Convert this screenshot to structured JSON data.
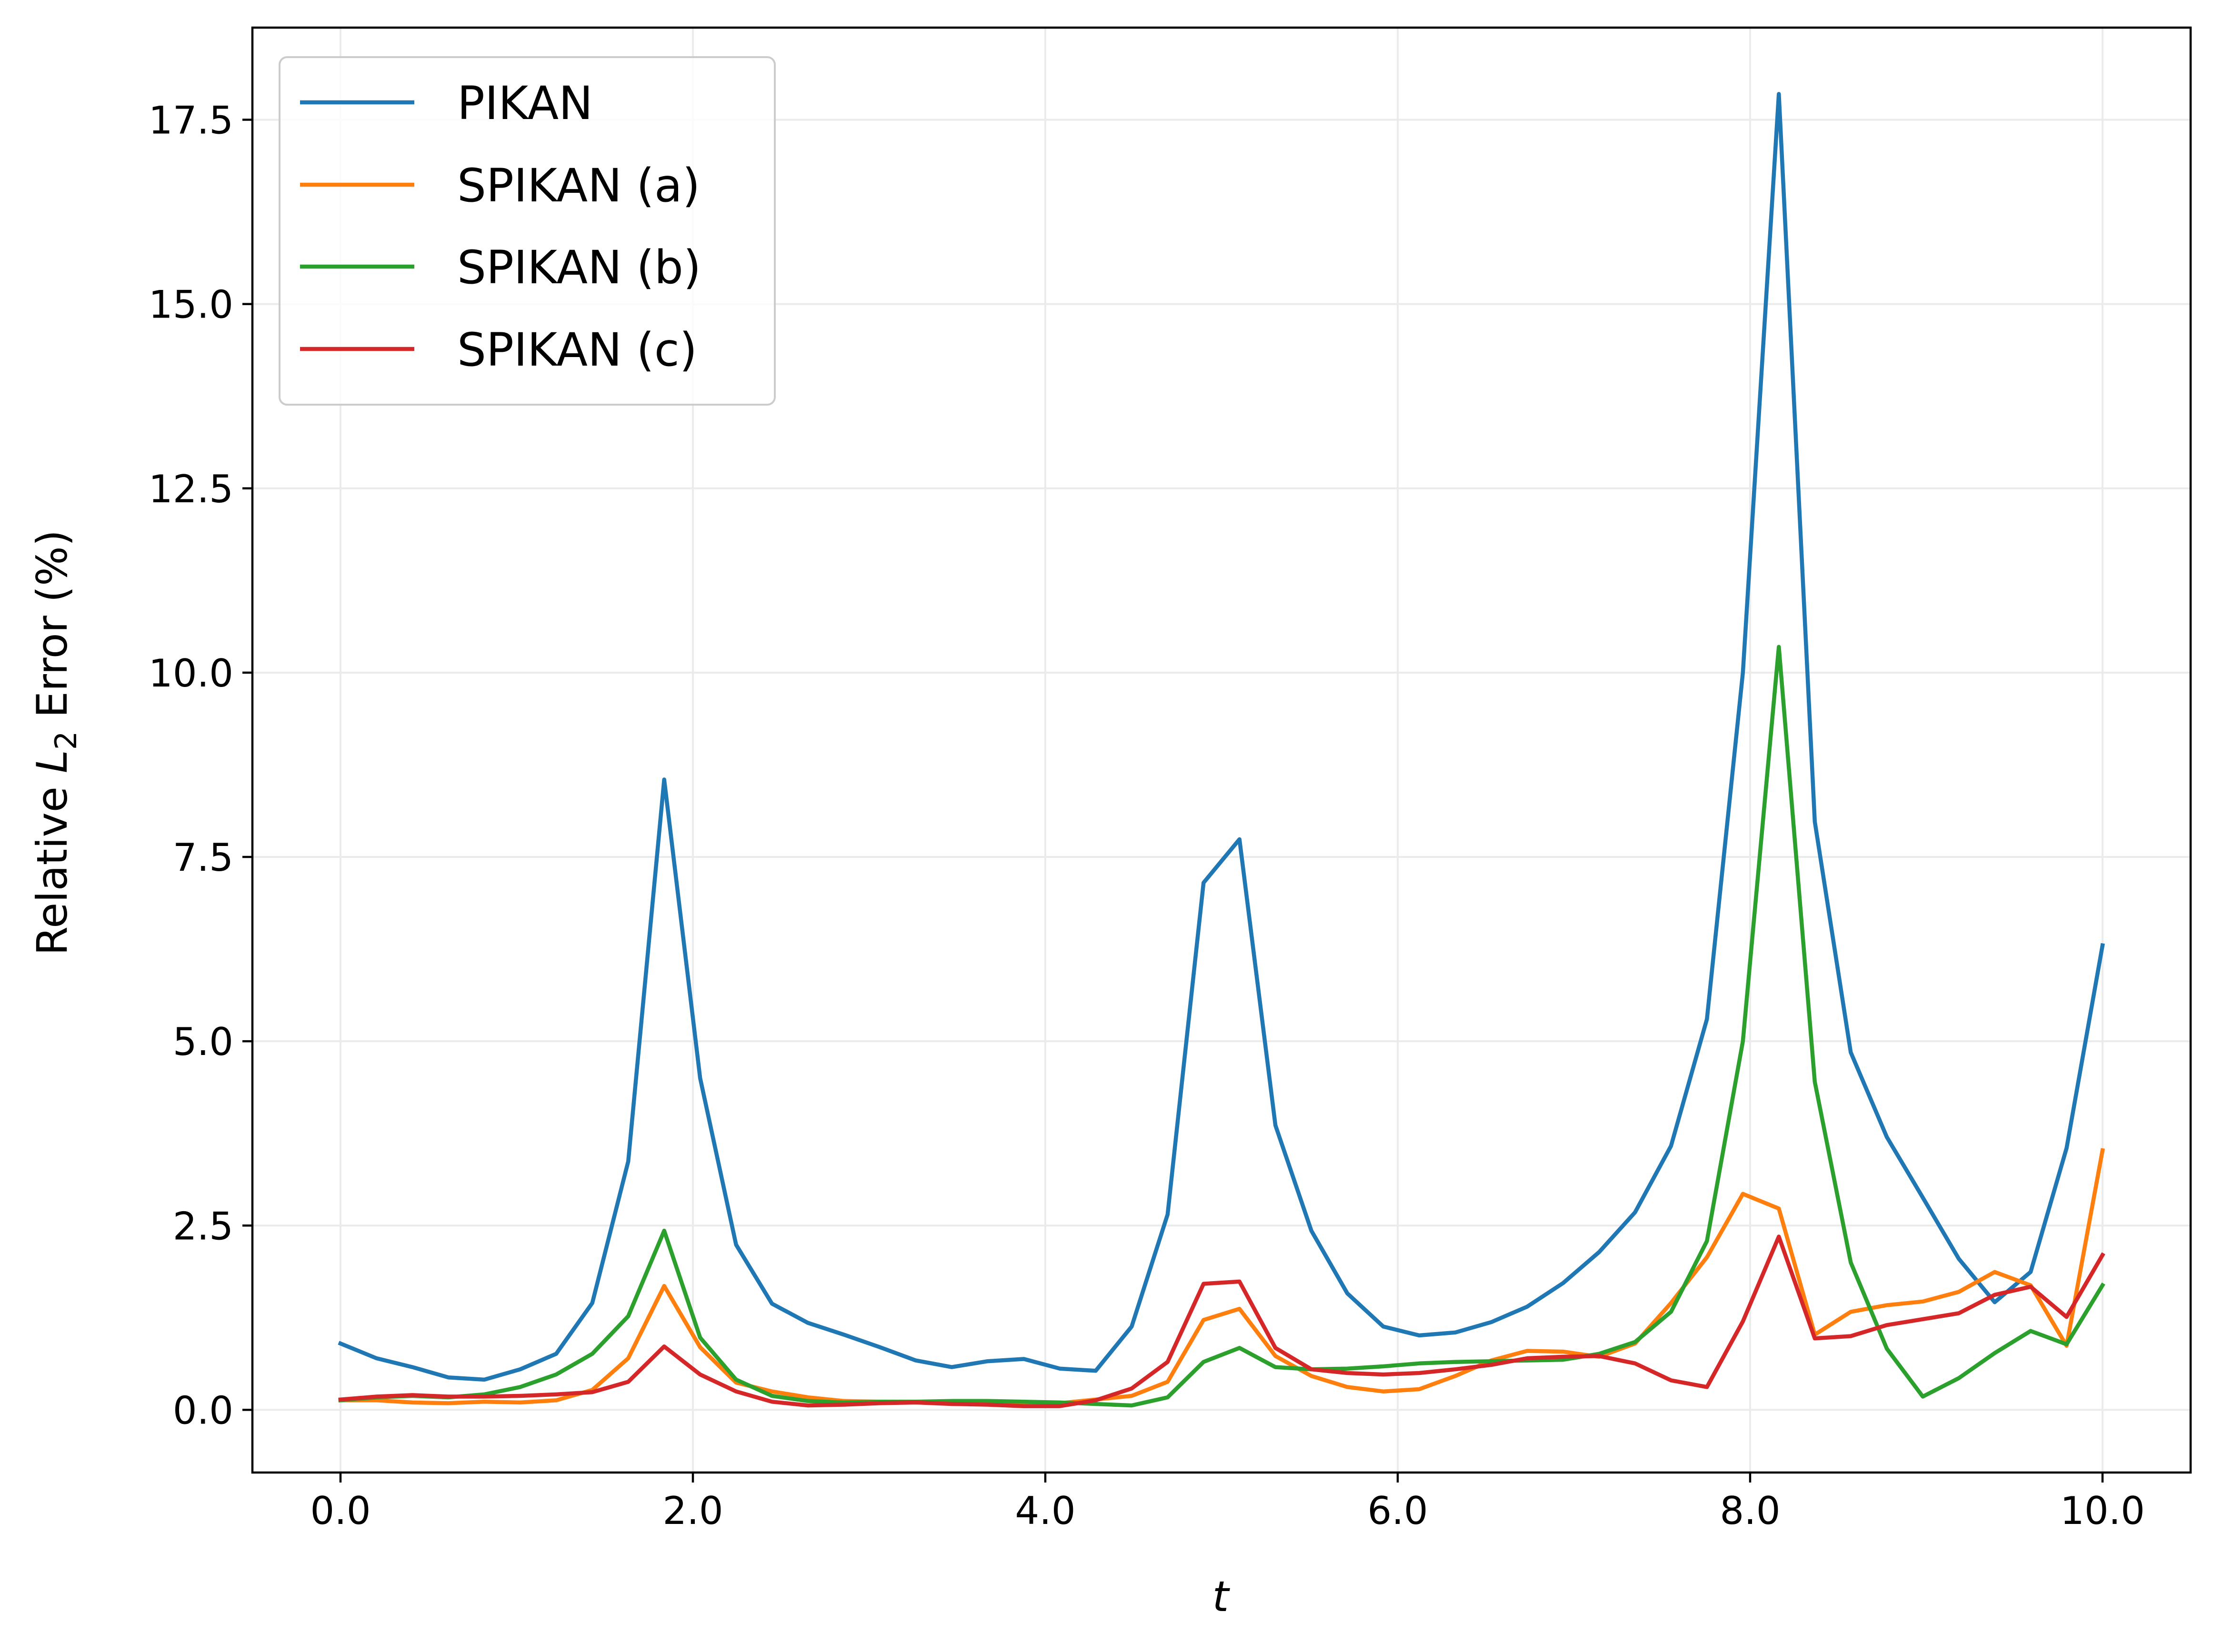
{
  "chart_data": {
    "type": "line",
    "title": "",
    "xlabel": "t",
    "ylabel_prefix": "Relative ",
    "ylabel_math": "L",
    "ylabel_sub": "2",
    "ylabel_suffix": " Error (%)",
    "xlim": [
      -0.5,
      10.5
    ],
    "ylim": [
      -0.85,
      18.75
    ],
    "xticks": [
      0,
      2,
      4,
      6,
      8,
      10
    ],
    "xtick_labels": [
      "0.0",
      "2.0",
      "4.0",
      "6.0",
      "8.0",
      "10.0"
    ],
    "yticks": [
      0,
      2.5,
      5,
      7.5,
      10,
      12.5,
      15,
      17.5
    ],
    "ytick_labels": [
      "0.0",
      "2.5",
      "5.0",
      "7.5",
      "10.0",
      "12.5",
      "15.0",
      "17.5"
    ],
    "grid": true,
    "legend_position": "upper-left",
    "x": [
      0.0,
      0.204,
      0.408,
      0.612,
      0.816,
      1.02,
      1.224,
      1.429,
      1.633,
      1.837,
      2.041,
      2.245,
      2.449,
      2.653,
      2.857,
      3.061,
      3.265,
      3.469,
      3.673,
      3.878,
      4.082,
      4.286,
      4.49,
      4.694,
      4.898,
      5.102,
      5.306,
      5.51,
      5.714,
      5.918,
      6.122,
      6.327,
      6.531,
      6.735,
      6.939,
      7.143,
      7.347,
      7.551,
      7.755,
      7.959,
      8.163,
      8.367,
      8.571,
      8.776,
      8.98,
      9.184,
      9.388,
      9.592,
      9.796,
      10.0
    ],
    "series": [
      {
        "name": "PIKAN",
        "color": "#1f77b4",
        "values": [
          0.9,
          0.7,
          0.58,
          0.44,
          0.41,
          0.55,
          0.76,
          1.45,
          3.37,
          8.55,
          4.5,
          2.24,
          1.44,
          1.18,
          1.02,
          0.85,
          0.67,
          0.58,
          0.66,
          0.69,
          0.56,
          0.53,
          1.13,
          2.65,
          7.15,
          7.74,
          3.86,
          2.43,
          1.58,
          1.13,
          1.01,
          1.05,
          1.19,
          1.4,
          1.72,
          2.14,
          2.68,
          3.58,
          5.3,
          10.0,
          17.85,
          7.98,
          4.85,
          3.7,
          2.88,
          2.05,
          1.46,
          1.87,
          3.55,
          6.3
        ]
      },
      {
        "name": "SPIKAN (a)",
        "color": "#ff7f0e",
        "values": [
          0.13,
          0.13,
          0.1,
          0.09,
          0.11,
          0.1,
          0.13,
          0.27,
          0.7,
          1.68,
          0.85,
          0.37,
          0.25,
          0.17,
          0.12,
          0.11,
          0.1,
          0.1,
          0.09,
          0.09,
          0.09,
          0.14,
          0.19,
          0.38,
          1.22,
          1.37,
          0.73,
          0.46,
          0.31,
          0.25,
          0.28,
          0.46,
          0.67,
          0.8,
          0.79,
          0.72,
          0.9,
          1.45,
          2.07,
          2.93,
          2.73,
          1.02,
          1.33,
          1.42,
          1.47,
          1.6,
          1.87,
          1.69,
          0.87,
          3.52
        ]
      },
      {
        "name": "SPIKAN (b)",
        "color": "#2ca02c",
        "values": [
          0.13,
          0.17,
          0.19,
          0.17,
          0.21,
          0.31,
          0.48,
          0.76,
          1.27,
          2.43,
          0.98,
          0.41,
          0.19,
          0.12,
          0.1,
          0.11,
          0.11,
          0.12,
          0.12,
          0.11,
          0.1,
          0.08,
          0.06,
          0.17,
          0.65,
          0.84,
          0.58,
          0.55,
          0.56,
          0.59,
          0.63,
          0.65,
          0.66,
          0.67,
          0.68,
          0.76,
          0.92,
          1.33,
          2.29,
          5.0,
          10.35,
          4.45,
          2.0,
          0.83,
          0.18,
          0.43,
          0.77,
          1.07,
          0.89,
          1.69
        ]
      },
      {
        "name": "SPIKAN (c)",
        "color": "#d62728",
        "values": [
          0.14,
          0.18,
          0.2,
          0.18,
          0.18,
          0.19,
          0.21,
          0.24,
          0.38,
          0.86,
          0.48,
          0.25,
          0.11,
          0.06,
          0.07,
          0.09,
          0.1,
          0.08,
          0.07,
          0.05,
          0.05,
          0.13,
          0.29,
          0.65,
          1.71,
          1.74,
          0.84,
          0.55,
          0.5,
          0.48,
          0.5,
          0.55,
          0.61,
          0.7,
          0.72,
          0.73,
          0.63,
          0.4,
          0.31,
          1.2,
          2.35,
          0.97,
          1.0,
          1.15,
          1.23,
          1.31,
          1.56,
          1.67,
          1.26,
          2.1
        ]
      }
    ]
  }
}
